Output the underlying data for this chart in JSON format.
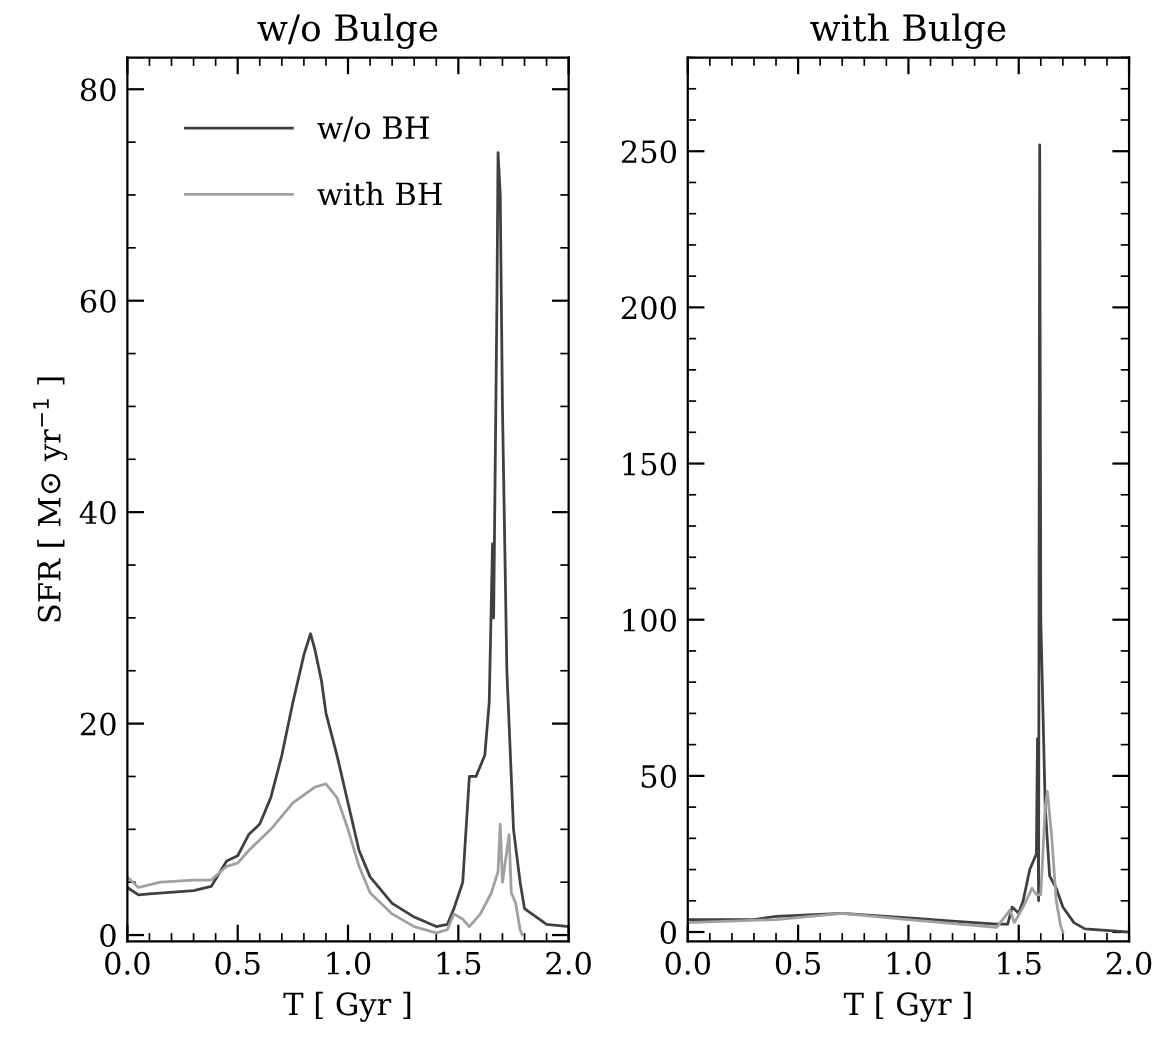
{
  "chart_data": [
    {
      "type": "line",
      "title": "w/o Bulge",
      "xlabel": "T [ Gyr ]",
      "ylabel": "SFR [ M⊙ yr$^{−1}$ ]",
      "xlim": [
        0,
        2
      ],
      "ylim": [
        -0.6,
        83
      ],
      "xticks": [
        {
          "value": 0,
          "label": "0.0"
        },
        {
          "value": 0.5,
          "label": "0.5"
        },
        {
          "value": 1,
          "label": "1.0"
        },
        {
          "value": 1.5,
          "label": "1.5"
        },
        {
          "value": 2,
          "label": "2.0"
        }
      ],
      "yticks": [
        0,
        20,
        40,
        60,
        80
      ],
      "legend": "top left",
      "grid": false,
      "marker": "none",
      "line_style": "solid",
      "series": [
        {
          "name": "w/o BH",
          "color": "#404040",
          "x": [
            0,
            0.05,
            0.1,
            0.3,
            0.38,
            0.45,
            0.5,
            0.55,
            0.6,
            0.65,
            0.7,
            0.75,
            0.8,
            0.83,
            0.85,
            0.88,
            0.9,
            0.95,
            1.0,
            1.05,
            1.1,
            1.2,
            1.3,
            1.4,
            1.45,
            1.48,
            1.52,
            1.55,
            1.58,
            1.62,
            1.64,
            1.655,
            1.66,
            1.675,
            1.68,
            1.69,
            1.7,
            1.72,
            1.75,
            1.78,
            1.8,
            1.9,
            2.0
          ],
          "values": [
            4.5,
            3.8,
            3.9,
            4.2,
            4.6,
            7,
            7.5,
            9.5,
            10.5,
            13,
            17,
            22,
            26.5,
            28.5,
            27,
            24,
            21,
            17,
            12.5,
            8,
            5.5,
            3,
            1.7,
            0.8,
            1,
            2.5,
            5,
            15,
            15,
            17,
            22,
            37,
            30,
            60,
            74,
            70,
            50,
            25,
            10,
            5,
            2.5,
            1,
            0.8
          ]
        },
        {
          "name": "with BH",
          "color": "#a0a0a0",
          "x": [
            0,
            0.05,
            0.15,
            0.3,
            0.38,
            0.45,
            0.5,
            0.55,
            0.65,
            0.75,
            0.85,
            0.9,
            0.95,
            1.0,
            1.05,
            1.1,
            1.2,
            1.3,
            1.4,
            1.45,
            1.48,
            1.52,
            1.55,
            1.6,
            1.65,
            1.68,
            1.69,
            1.7,
            1.72,
            1.73,
            1.74,
            1.76,
            1.78,
            1.79
          ],
          "values": [
            5.5,
            4.5,
            5,
            5.2,
            5.2,
            6.5,
            6.8,
            8,
            10,
            12.5,
            14,
            14.3,
            13,
            10,
            6.5,
            4,
            2,
            0.8,
            0.2,
            0.5,
            2,
            1.5,
            0.8,
            2,
            4,
            6,
            10.5,
            5,
            8,
            9.5,
            4,
            3,
            0.5,
            0
          ]
        }
      ]
    },
    {
      "type": "line",
      "title": "with Bulge",
      "xlabel": "T [ Gyr ]",
      "xlim": [
        0,
        2
      ],
      "ylim": [
        -3,
        280
      ],
      "xticks": [
        {
          "value": 0,
          "label": "0.0"
        },
        {
          "value": 0.5,
          "label": "0.5"
        },
        {
          "value": 1,
          "label": "1.0"
        },
        {
          "value": 1.5,
          "label": "1.5"
        },
        {
          "value": 2,
          "label": "2.0"
        }
      ],
      "yticks": [
        0,
        50,
        100,
        150,
        200,
        250
      ],
      "grid": false,
      "marker": "none",
      "line_style": "solid",
      "series": [
        {
          "color": "#404040",
          "x": [
            0,
            0.3,
            0.4,
            0.7,
            0.9,
            1.0,
            1.2,
            1.4,
            1.45,
            1.47,
            1.5,
            1.52,
            1.55,
            1.58,
            1.585,
            1.59,
            1.595,
            1.6,
            1.62,
            1.64,
            1.67,
            1.7,
            1.75,
            1.8,
            2.0
          ],
          "values": [
            4,
            4,
            5,
            6,
            5,
            4.5,
            3.5,
            2.5,
            2.5,
            8,
            6,
            10,
            20,
            25,
            62,
            10,
            252,
            100,
            40,
            18,
            14,
            8,
            3,
            1,
            0
          ]
        },
        {
          "color": "#a0a0a0",
          "x": [
            0,
            0.4,
            0.7,
            1.0,
            1.4,
            1.46,
            1.48,
            1.52,
            1.56,
            1.58,
            1.6,
            1.62,
            1.63,
            1.65,
            1.67,
            1.69,
            1.7
          ],
          "values": [
            3,
            4,
            6,
            4,
            1.5,
            7,
            3,
            8,
            14,
            12,
            12,
            40,
            45,
            30,
            10,
            2,
            0
          ]
        }
      ]
    }
  ]
}
